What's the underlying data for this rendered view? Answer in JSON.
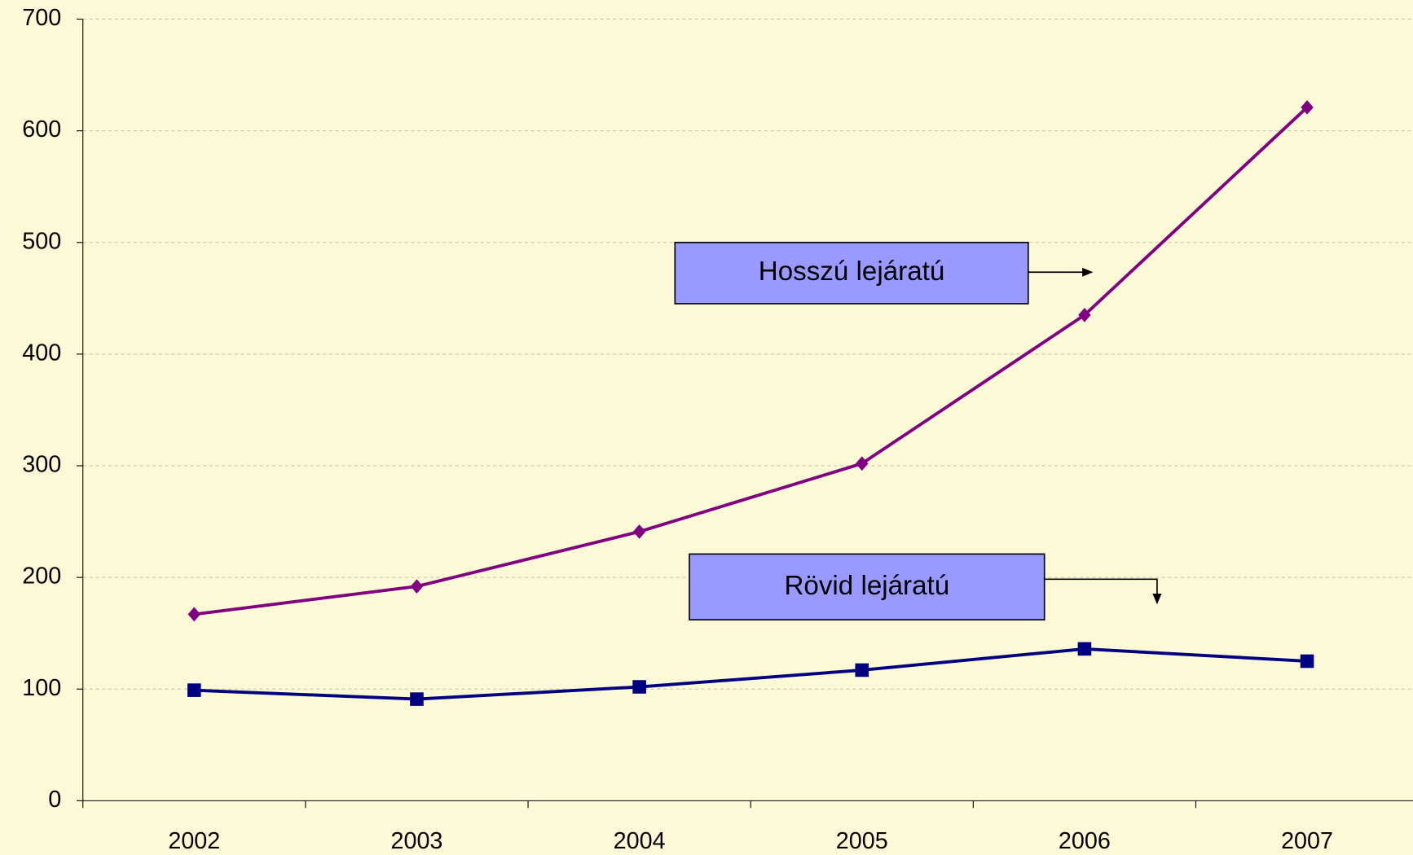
{
  "chart_data": {
    "type": "line",
    "categories": [
      "2002",
      "2003",
      "2004",
      "2005",
      "2006",
      "2007"
    ],
    "series": [
      {
        "name": "Hosszú lejáratú",
        "color": "#800080",
        "marker": "diamond",
        "values": [
          167,
          192,
          241,
          302,
          435,
          621
        ]
      },
      {
        "name": "Rövid lejáratú",
        "color": "#000080",
        "marker": "square",
        "values": [
          99,
          91,
          102,
          117,
          136,
          125
        ]
      }
    ],
    "ylim": [
      0,
      700
    ],
    "yticks": [
      0,
      100,
      200,
      300,
      400,
      500,
      600,
      700
    ],
    "grid": true
  }
}
